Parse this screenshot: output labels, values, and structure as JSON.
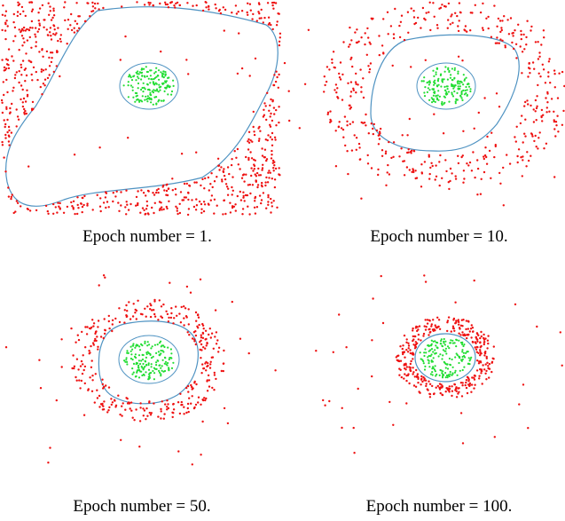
{
  "colors": {
    "outer_points": "#ee1111",
    "inner_points": "#22dd33",
    "boundary_line": "#4f93c2",
    "background": "#ffffff"
  },
  "panels": [
    {
      "caption": "Epoch number = 1."
    },
    {
      "caption": "Epoch number = 10."
    },
    {
      "caption": "Epoch number = 50."
    },
    {
      "caption": "Epoch number = 100."
    }
  ]
}
